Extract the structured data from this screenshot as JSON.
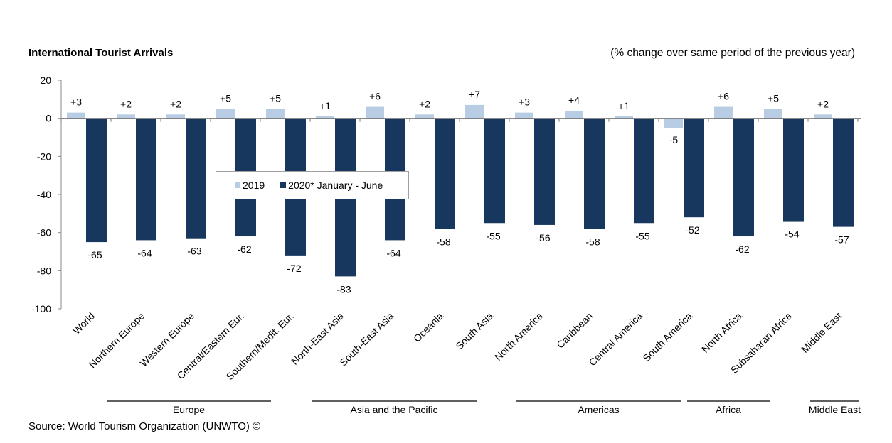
{
  "title": "International Tourist Arrivals",
  "subtitle": "(% change over same period of the previous year)",
  "source": "Source: World Tourism Organization (UNWTO) ©",
  "colors": {
    "series_2019": "#b8cce4",
    "series_2020": "#17375e"
  },
  "chart_data": {
    "type": "bar",
    "categories": [
      "World",
      "Northern Europe",
      "Western Europe",
      "Central/Eastern Eur.",
      "Southern/Medit. Eur.",
      "North-East Asia",
      "South-East Asia",
      "Oceania",
      "South Asia",
      "North America",
      "Caribbean",
      "Central America",
      "South America",
      "North Africa",
      "Subsaharan Africa",
      "Middle East"
    ],
    "series": [
      {
        "name": "2019",
        "values": [
          3,
          2,
          2,
          5,
          5,
          1,
          6,
          2,
          7,
          3,
          4,
          1,
          -5,
          6,
          5,
          2
        ],
        "labels": [
          "+3",
          "+2",
          "+2",
          "+5",
          "+5",
          "+1",
          "+6",
          "+2",
          "+7",
          "+3",
          "+4",
          "+1",
          "-5",
          "+6",
          "+5",
          "+2"
        ]
      },
      {
        "name": "2020* January - June",
        "values": [
          -65,
          -64,
          -63,
          -62,
          -72,
          -83,
          -64,
          -58,
          -55,
          -56,
          -58,
          -55,
          -52,
          -62,
          -54,
          -57
        ],
        "labels": [
          "-65",
          "-64",
          "-63",
          "-62",
          "-72",
          "-83",
          "-64",
          "-58",
          "-55",
          "-56",
          "-58",
          "-55",
          "-52",
          "-62",
          "-54",
          "-57"
        ]
      }
    ],
    "ylim": [
      -100,
      20
    ],
    "yticks": [
      "20",
      "0",
      "-20",
      "-40",
      "-60",
      "-80",
      "-100"
    ],
    "ytick_values": [
      20,
      0,
      -20,
      -40,
      -60,
      -80,
      -100
    ],
    "regions": [
      {
        "name": "Europe",
        "first": 1,
        "last": 4
      },
      {
        "name": "Asia and the Pacific",
        "first": 5,
        "last": 8
      },
      {
        "name": "Americas",
        "first": 9,
        "last": 12
      },
      {
        "name": "Africa",
        "first": 13,
        "last": 14
      },
      {
        "name": "Middle East",
        "first": 15,
        "last": 15
      }
    ],
    "legend_position": "center-left",
    "grid": false
  }
}
